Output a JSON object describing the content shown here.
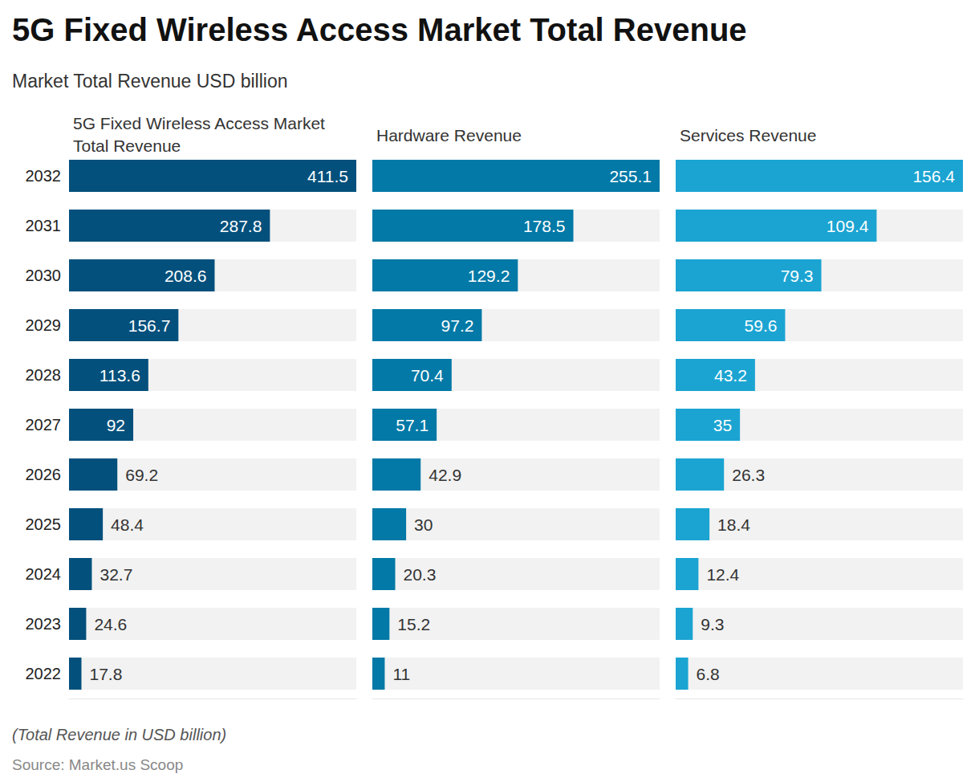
{
  "title": "5G Fixed Wireless Access Market Total Revenue",
  "subtitle": "Market Total Revenue USD billion",
  "footnote": "(Total Revenue in USD billion)",
  "source": "Source: Market.us Scoop",
  "chart_data": [
    {
      "type": "bar",
      "orientation": "horizontal",
      "title": "5G Fixed Wireless Access Market Total Revenue",
      "categories": [
        "2032",
        "2031",
        "2030",
        "2029",
        "2028",
        "2027",
        "2026",
        "2025",
        "2024",
        "2023",
        "2022"
      ],
      "values": [
        411.5,
        287.8,
        208.6,
        156.7,
        113.6,
        92,
        69.2,
        48.4,
        32.7,
        24.6,
        17.8
      ],
      "color": "#04507c",
      "xlim": [
        0,
        411.5
      ],
      "data_labels": true,
      "tick_labels": "y"
    },
    {
      "type": "bar",
      "orientation": "horizontal",
      "title": "Hardware Revenue",
      "categories": [
        "2032",
        "2031",
        "2030",
        "2029",
        "2028",
        "2027",
        "2026",
        "2025",
        "2024",
        "2023",
        "2022"
      ],
      "values": [
        255.1,
        178.5,
        129.2,
        97.2,
        70.4,
        57.1,
        42.9,
        30,
        20.3,
        15.2,
        11
      ],
      "color": "#0279a6",
      "xlim": [
        0,
        255.1
      ],
      "data_labels": true,
      "tick_labels": false
    },
    {
      "type": "bar",
      "orientation": "horizontal",
      "title": "Services Revenue",
      "categories": [
        "2032",
        "2031",
        "2030",
        "2029",
        "2028",
        "2027",
        "2026",
        "2025",
        "2024",
        "2023",
        "2022"
      ],
      "values": [
        156.4,
        109.4,
        79.3,
        59.6,
        43.2,
        35,
        26.3,
        18.4,
        12.4,
        9.3,
        6.8
      ],
      "color": "#1ba4d2",
      "xlim": [
        0,
        156.4
      ],
      "data_labels": true,
      "tick_labels": false
    }
  ]
}
